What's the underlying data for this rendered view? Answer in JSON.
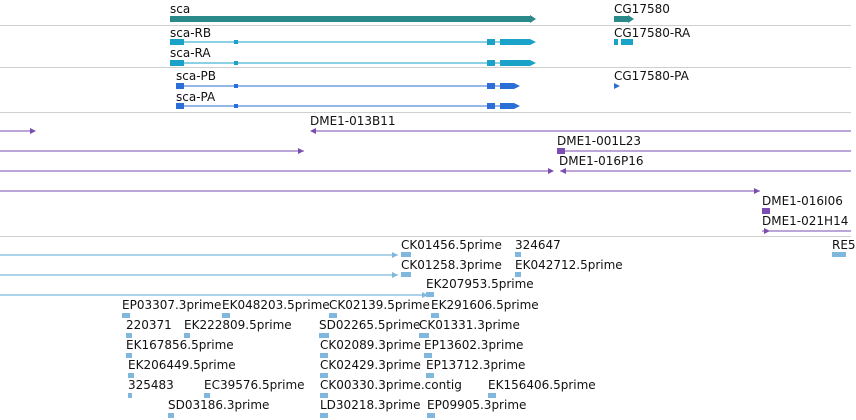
{
  "colors": {
    "gene": "#2a8a8a",
    "transcript_r": "#1aa2c8",
    "transcript_p": "#2b6fd6",
    "clone": "#7a4eb0",
    "est_line": "#5aa7d6",
    "est_box": "#7fb8dc",
    "separator": "#cfcfcf"
  },
  "gene_track": {
    "genes": [
      {
        "name": "sca",
        "color": "gene",
        "glyph": "arrow-bar"
      },
      {
        "name": "CG17580",
        "color": "gene",
        "glyph": "arrow-bar"
      }
    ]
  },
  "transcript_track_r": {
    "items": [
      {
        "name": "sca-RB",
        "color": "transcript_r"
      },
      {
        "name": "sca-RA",
        "color": "transcript_r"
      },
      {
        "name": "CG17580-RA",
        "color": "transcript_r"
      }
    ]
  },
  "transcript_track_p": {
    "items": [
      {
        "name": "sca-PB",
        "color": "transcript_p"
      },
      {
        "name": "sca-PA",
        "color": "transcript_p"
      },
      {
        "name": "CG17580-PA",
        "color": "transcript_p"
      }
    ]
  },
  "clone_track": {
    "items": [
      {
        "name": "DME1-013B11"
      },
      {
        "name": "DME1-001L23"
      },
      {
        "name": "DME1-016P16"
      },
      {
        "name": "DME1-016I06"
      },
      {
        "name": "DME1-021H14"
      }
    ]
  },
  "est_track": {
    "items": [
      "CK01456.5prime",
      "324647",
      "RE5",
      "CK01258.3prime",
      "EK042712.5prime",
      "EK207953.5prime",
      "EP03307.3prime",
      "EK048203.5prime",
      "CK02139.5prime",
      "EK291606.5prime",
      "220371",
      "EK222809.5prime",
      "SD02265.5prime",
      "CK01331.3prime",
      "EK167856.5prime",
      "CK02089.3prime",
      "EP13602.3prime",
      "EK206449.5prime",
      "CK02429.3prime",
      "EP13712.3prime",
      "325483",
      "EC39576.5prime",
      "CK00330.3prime.contig",
      "EK156406.5prime",
      "SD03186.3prime",
      "LD30218.3prime",
      "EP09905.3prime"
    ]
  }
}
